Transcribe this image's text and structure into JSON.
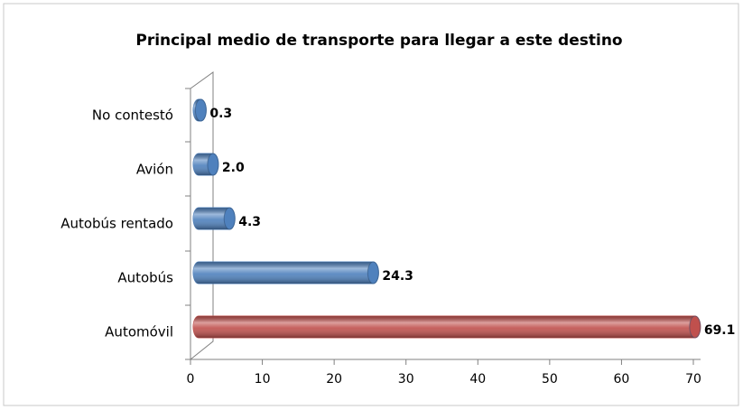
{
  "chart_data": {
    "type": "bar",
    "orientation": "horizontal",
    "title": "Principal medio de transporte para llegar a este destino",
    "categories": [
      "No contestó",
      "Avión",
      "Autobús rentado",
      "Autobús",
      "Automóvil"
    ],
    "values": [
      0.3,
      2,
      4.3,
      24.3,
      69.1
    ],
    "value_labels": [
      "0.3",
      "2.0",
      "4.3",
      "24.3",
      "69.1"
    ],
    "colors": [
      "#4f81bd",
      "#4f81bd",
      "#4f81bd",
      "#4f81bd",
      "#c0504d"
    ],
    "xlim": [
      0,
      70
    ],
    "xticks": [
      0,
      10,
      20,
      30,
      40,
      50,
      60,
      70
    ]
  }
}
